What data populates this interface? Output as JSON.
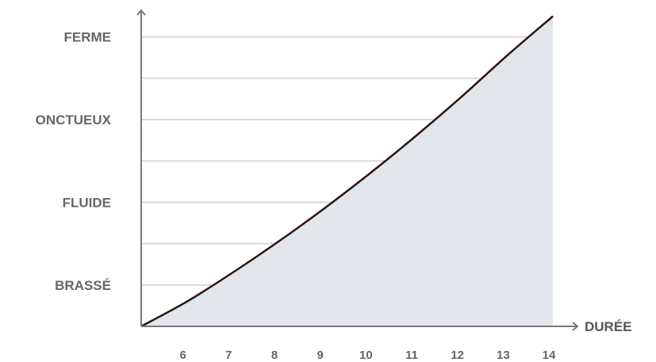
{
  "chart_data": {
    "type": "area",
    "title": "",
    "xlabel": "DURÉE",
    "ylabel": "",
    "x_ticks": [
      6,
      7,
      8,
      9,
      10,
      11,
      12,
      13,
      14
    ],
    "xlim": [
      5,
      14
    ],
    "y_categories": [
      "BRASSÉ",
      "FLUIDE",
      "ONCTUEUX",
      "FERME"
    ],
    "ylim": [
      0,
      7.3
    ],
    "grid": true,
    "series": [
      {
        "x": [
          5,
          6,
          7,
          8,
          9,
          10,
          11,
          12,
          13,
          14
        ],
        "y": [
          0,
          0.6,
          1.3,
          2.05,
          2.85,
          3.7,
          4.6,
          5.55,
          6.55,
          7.5
        ],
        "color": "#2a1512",
        "fill": "#e2e5ea"
      }
    ],
    "colors": {
      "grid": "#d9d9d9",
      "axis": "#777777",
      "labels": "#666666"
    }
  }
}
